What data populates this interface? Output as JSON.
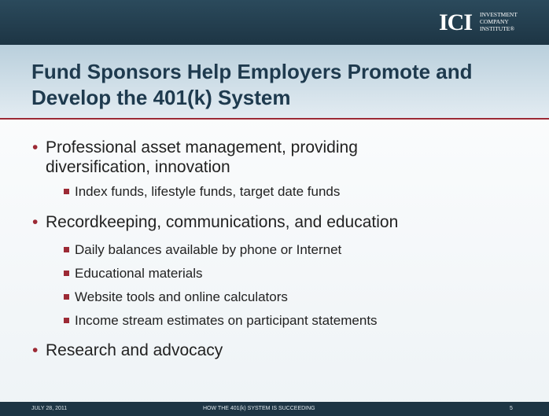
{
  "header": {
    "logo": "ICI",
    "logo_lines": [
      "INVESTMENT",
      "COMPANY",
      "INSTITUTE®"
    ]
  },
  "title": "Fund Sponsors Help Employers Promote and Develop the 401(k) System",
  "bullets": [
    {
      "text": "Professional asset management, providing diversification, innovation",
      "sub": [
        "Index funds, lifestyle funds, target date funds"
      ]
    },
    {
      "text": "Recordkeeping, communications, and education",
      "sub": [
        "Daily balances available by phone or Internet",
        "Educational materials",
        "Website tools and online calculators",
        "Income stream estimates on participant statements"
      ]
    },
    {
      "text": "Research and advocacy",
      "sub": []
    }
  ],
  "footer": {
    "date": "JULY 28, 2011",
    "title": "HOW THE 401(k) SYSTEM IS SUCCEEDING",
    "page": "5"
  }
}
